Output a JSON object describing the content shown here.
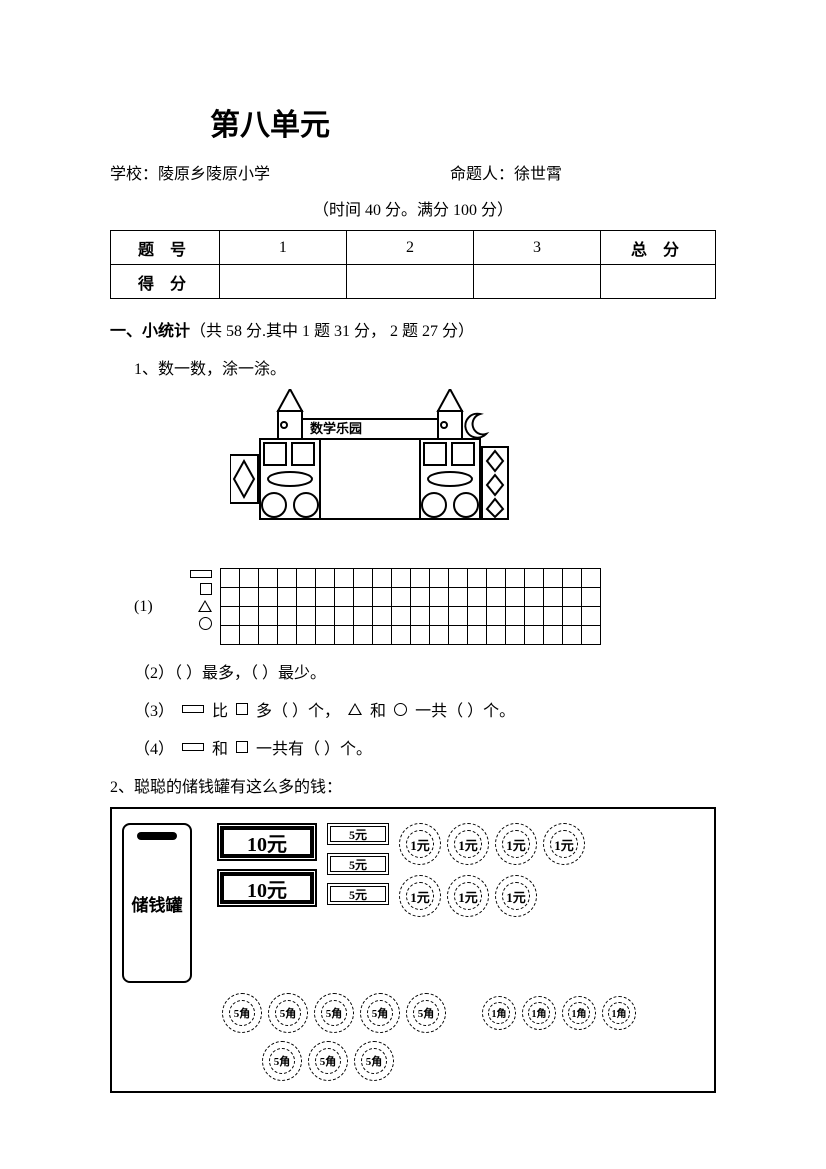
{
  "title": "第八单元",
  "school_label": "学校：",
  "school_value": "陵原乡陵原小学",
  "author_label": "命题人：",
  "author_value": "徐世霄",
  "time_text": "（时间 40 分。满分 100 分）",
  "score_table": {
    "row1": [
      "题 号",
      "1",
      "2",
      "3",
      "总 分"
    ],
    "row2_label": "得 分"
  },
  "section1": {
    "heading_bold": "一、小统计",
    "heading_rest": "（共 58 分.其中 1 题 31 分， 2 题 27 分）",
    "q1_label": "1、数一数，涂一涂。",
    "castle_banner": "数学乐园",
    "grid": {
      "rows": 4,
      "cols": 20
    },
    "sub1_label": "(1)",
    "sub2_text": "（2）（    ）最多，（    ）最少。",
    "sub3_prefix": "（3）",
    "sub3_mid1": " 比 ",
    "sub3_mid2": " 多（   ）个，",
    "sub3_mid3": " 和 ",
    "sub3_suffix": " 一共（   ）个。",
    "sub4_prefix": "（4）",
    "sub4_mid": " 和 ",
    "sub4_suffix": " 一共有（    ）个。"
  },
  "section2": {
    "heading": "2、聪聪的储钱罐有这么多的钱：",
    "jar_label": "储钱罐",
    "bill_10": "10元",
    "bill_5": "5元",
    "coin_1y": "1元",
    "coin_5j": "5角",
    "coin_1j": "1角",
    "bills_10_count": 2,
    "bills_5_count": 3,
    "coins_1y_row1": 4,
    "coins_1y_row2": 3,
    "coins_5j_row1": 5,
    "coins_1j_row1": 4,
    "coins_5j_row2": 3
  },
  "colors": {
    "text": "#000000",
    "bg": "#ffffff",
    "border": "#000000"
  }
}
